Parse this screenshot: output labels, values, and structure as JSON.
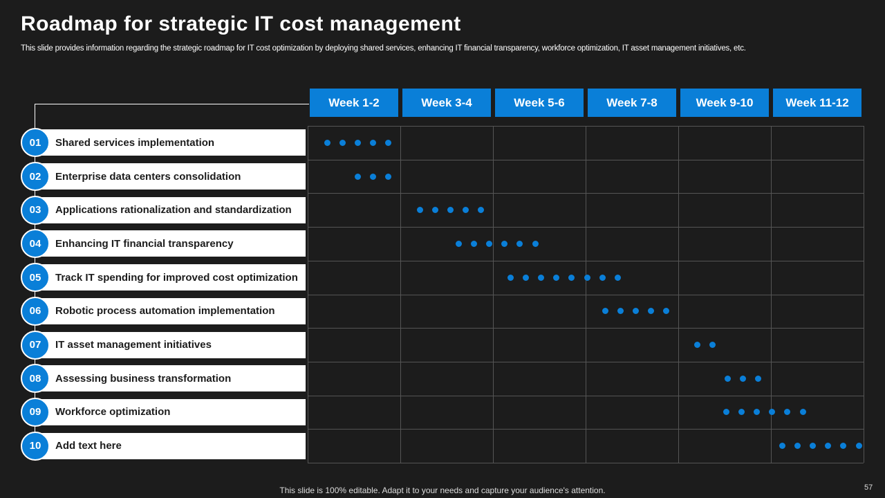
{
  "title": "Roadmap for strategic IT cost management",
  "subtitle": "This slide provides information regarding the strategic roadmap for IT cost optimization by  deploying shared services, enhancing IT financial transparency, workforce optimization, IT  asset management initiatives, etc.",
  "weeks": [
    "Week 1-2",
    "Week 3-4",
    "Week 5-6",
    "Week 7-8",
    "Week 9-10",
    "Week 11-12"
  ],
  "rows": [
    {
      "number": "01",
      "label": "Shared services implementation"
    },
    {
      "number": "02",
      "label": "Enterprise data centers consolidation"
    },
    {
      "number": "03",
      "label": "Applications  rationalization and standardization"
    },
    {
      "number": "04",
      "label": "Enhancing IT financial transparency"
    },
    {
      "number": "05",
      "label": "Track IT spending for improved cost optimization"
    },
    {
      "number": "06",
      "label": "Robotic process automation implementation"
    },
    {
      "number": "07",
      "label": "IT asset management  initiatives"
    },
    {
      "number": "08",
      "label": "Assessing business transformation"
    },
    {
      "number": "09",
      "label": "Workforce optimization"
    },
    {
      "number": "10",
      "label": "Add  text here"
    }
  ],
  "footer": "This slide is 100% editable. Adapt it to your needs and capture your audience's attention.",
  "page_number": "57"
}
